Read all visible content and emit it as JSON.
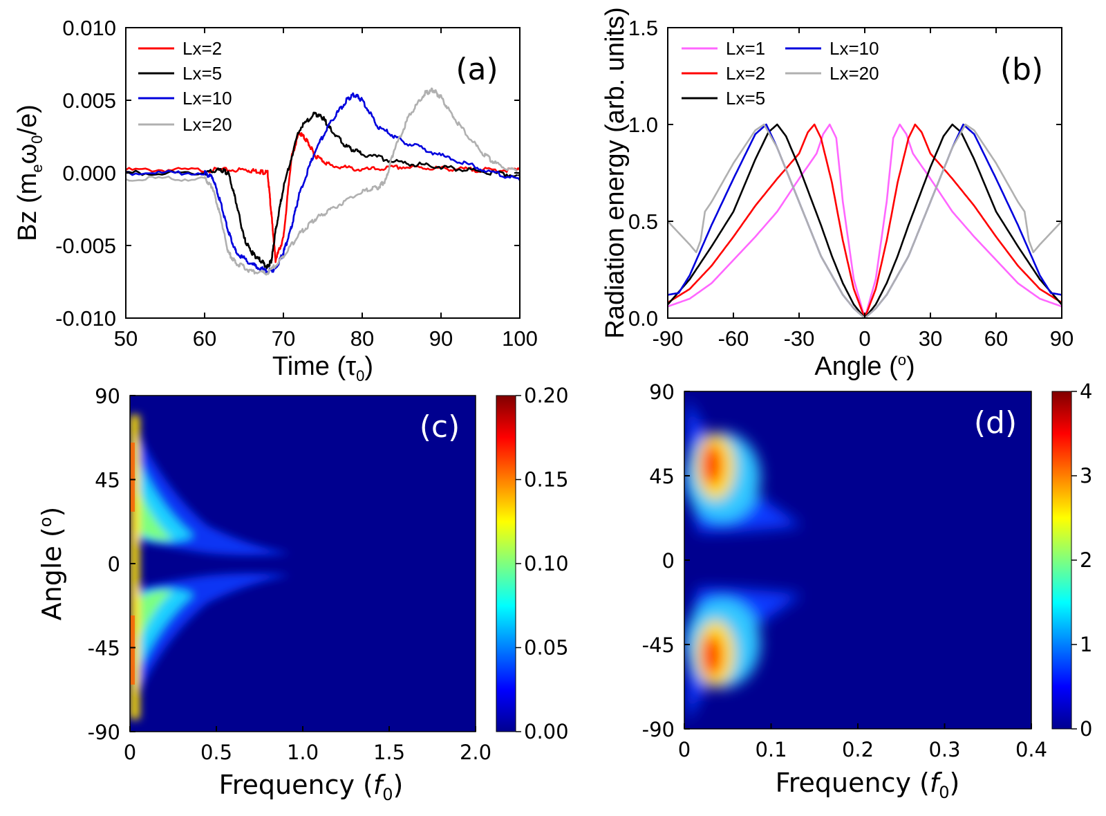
{
  "chart_data": [
    {
      "id": "a",
      "type": "line",
      "panel_label": "(a)",
      "xlabel": "Time (τ",
      "xlabel_sub": "0",
      "xlabel_end": ")",
      "ylabel": "Bz (m",
      "ylabel_sub1": "e",
      "ylabel_mid": "ω",
      "ylabel_sub2": "0",
      "ylabel_end": "/e)",
      "xlim": [
        50,
        100
      ],
      "ylim": [
        -0.01,
        0.01
      ],
      "xticks": [
        "50",
        "60",
        "70",
        "80",
        "90",
        "100"
      ],
      "yticks": [
        "-0.010",
        "-0.005",
        "0.000",
        "0.005",
        "0.010"
      ],
      "legend_position": "top-left",
      "series": [
        {
          "name": "Lx=2",
          "color": "#ff0000",
          "x": [
            50,
            60,
            65,
            67,
            68,
            68.5,
            69,
            70,
            71,
            72,
            73,
            74,
            76,
            80,
            85,
            90,
            95,
            100
          ],
          "y": [
            0.0002,
            0.0002,
            0.0002,
            0.0001,
            0,
            -0.003,
            -0.006,
            -0.0045,
            0.001,
            0.0028,
            0.0022,
            0.0012,
            0.0005,
            0.0002,
            0.0004,
            0.0003,
            0.0002,
            0.0002
          ]
        },
        {
          "name": "Lx=5",
          "color": "#000000",
          "x": [
            50,
            60,
            62,
            63,
            64,
            65,
            66,
            67,
            68,
            68.5,
            69,
            70,
            72,
            74,
            75,
            76,
            78,
            80,
            85,
            90,
            95,
            100
          ],
          "y": [
            0,
            0,
            0.0002,
            0,
            -0.002,
            -0.0045,
            -0.0055,
            -0.006,
            -0.0065,
            -0.006,
            -0.004,
            -0.001,
            0.003,
            0.0041,
            0.0038,
            0.003,
            0.0018,
            0.0013,
            0.0007,
            0.0004,
            0.0001,
            -0.0002
          ]
        },
        {
          "name": "Lx=10",
          "color": "#0000dd",
          "x": [
            50,
            60,
            61,
            62,
            63,
            64,
            66,
            68,
            69,
            70,
            71,
            72,
            74,
            76,
            78,
            79,
            80,
            82,
            85,
            90,
            95,
            100
          ],
          "y": [
            0,
            0,
            -0.0003,
            -0.002,
            -0.004,
            -0.0055,
            -0.0063,
            -0.0068,
            -0.0066,
            -0.0055,
            -0.0038,
            -0.0015,
            0.0015,
            0.0035,
            0.005,
            0.0054,
            0.005,
            0.0032,
            0.0022,
            0.0012,
            0.0003,
            -0.0005
          ]
        },
        {
          "name": "Lx=20",
          "color": "#b0b0b0",
          "x": [
            50,
            60,
            61,
            62,
            63,
            64,
            66,
            68,
            70,
            72,
            74,
            76,
            80,
            82,
            83,
            84,
            86,
            88,
            89,
            90,
            92,
            95,
            97,
            100
          ],
          "y": [
            -0.0004,
            -0.0004,
            -0.001,
            -0.003,
            -0.0055,
            -0.0062,
            -0.0068,
            -0.0069,
            -0.0058,
            -0.0042,
            -0.0032,
            -0.0025,
            -0.0013,
            -0.001,
            -0.0005,
            0.0015,
            0.004,
            0.0055,
            0.0057,
            0.0052,
            0.0035,
            0.0015,
            0.0006,
            0
          ]
        }
      ]
    },
    {
      "id": "b",
      "type": "line",
      "panel_label": "(b)",
      "xlabel": "Angle (",
      "xlabel_sup": "o",
      "xlabel_end": ")",
      "ylabel": "Radiation energy (arb. units)",
      "xlim": [
        -90,
        90
      ],
      "ylim": [
        0,
        1.5
      ],
      "xticks": [
        "-90",
        "-60",
        "-30",
        "0",
        "30",
        "60",
        "90"
      ],
      "yticks": [
        "0.0",
        "0.5",
        "1.0",
        "1.5"
      ],
      "legend_position": "top-left",
      "series": [
        {
          "name": "Lx=1",
          "color": "#ff66ff",
          "peak": 16,
          "x": [
            0,
            5,
            10,
            13,
            16,
            19,
            22,
            30,
            40,
            50,
            60,
            70,
            80,
            90
          ],
          "y": [
            0,
            0.2,
            0.6,
            0.93,
            1.0,
            0.95,
            0.85,
            0.72,
            0.55,
            0.42,
            0.3,
            0.18,
            0.1,
            0.06
          ]
        },
        {
          "name": "Lx=2",
          "color": "#ff0000",
          "peak": 23,
          "x": [
            0,
            5,
            10,
            15,
            20,
            23,
            26,
            30,
            40,
            50,
            60,
            70,
            80,
            90
          ],
          "y": [
            0,
            0.15,
            0.4,
            0.7,
            0.93,
            1.0,
            0.96,
            0.85,
            0.72,
            0.58,
            0.42,
            0.27,
            0.15,
            0.08
          ]
        },
        {
          "name": "Lx=5",
          "color": "#000000",
          "peak": 40,
          "x": [
            0,
            5,
            10,
            15,
            20,
            30,
            36,
            40,
            44,
            50,
            60,
            70,
            80,
            90
          ],
          "y": [
            0,
            0.07,
            0.18,
            0.32,
            0.48,
            0.78,
            0.94,
            1.0,
            0.96,
            0.82,
            0.55,
            0.37,
            0.2,
            0.07
          ]
        },
        {
          "name": "Lx=10",
          "color": "#0000dd",
          "peak": 45,
          "x": [
            0,
            5,
            10,
            20,
            30,
            40,
            45,
            50,
            60,
            70,
            80,
            85,
            90
          ],
          "y": [
            0,
            0.05,
            0.12,
            0.32,
            0.6,
            0.88,
            1.0,
            0.95,
            0.72,
            0.48,
            0.22,
            0.13,
            0.12
          ]
        },
        {
          "name": "Lx=20",
          "color": "#b0b0b0",
          "peak": 46,
          "x": [
            0,
            5,
            10,
            20,
            30,
            40,
            46,
            50,
            60,
            70,
            73,
            75,
            77,
            80,
            85,
            90
          ],
          "y": [
            0,
            0.05,
            0.12,
            0.32,
            0.6,
            0.88,
            1.0,
            0.97,
            0.8,
            0.6,
            0.55,
            0.4,
            0.34,
            0.38,
            0.44,
            0.5
          ]
        }
      ]
    },
    {
      "id": "c",
      "type": "heatmap",
      "panel_label": "(c)",
      "xlabel": "Frequency (",
      "xlabel_italic": "f",
      "xlabel_sub": "0",
      "xlabel_end": ")",
      "ylabel": "Angle (",
      "ylabel_sup": "o",
      "ylabel_end": ")",
      "xlim": [
        0,
        2.0
      ],
      "ylim": [
        -90,
        90
      ],
      "xticks": [
        "0",
        "0.5",
        "1.0",
        "1.5",
        "2.0"
      ],
      "yticks": [
        "-90",
        "-45",
        "0",
        "45",
        "90"
      ],
      "colorbar_range": [
        0,
        0.2
      ],
      "colorbar_ticks": [
        "0.00",
        "0.05",
        "0.10",
        "0.15",
        "0.20"
      ],
      "features": "bright lobes near f=0 spreading out to ~0.8 f0 at angles near ±15°, peak ~0.2 along the left edge at ±(30–60)°"
    },
    {
      "id": "d",
      "type": "heatmap",
      "panel_label": "(d)",
      "xlabel": "Frequency (",
      "xlabel_italic": "f",
      "xlabel_sub": "0",
      "xlabel_end": ")",
      "xlim": [
        0,
        0.4
      ],
      "ylim": [
        -90,
        90
      ],
      "xticks": [
        "0",
        "0.1",
        "0.2",
        "0.3",
        "0.4"
      ],
      "yticks": [
        "-90",
        "-45",
        "0",
        "45",
        "90"
      ],
      "colorbar_range": [
        0,
        4
      ],
      "colorbar_ticks": [
        "0",
        "1",
        "2",
        "3",
        "4"
      ],
      "features": "two hot spots (~4) near f=0.03 f0 at ±50°, spreading to ~0.15 f0 around ±30°"
    }
  ]
}
